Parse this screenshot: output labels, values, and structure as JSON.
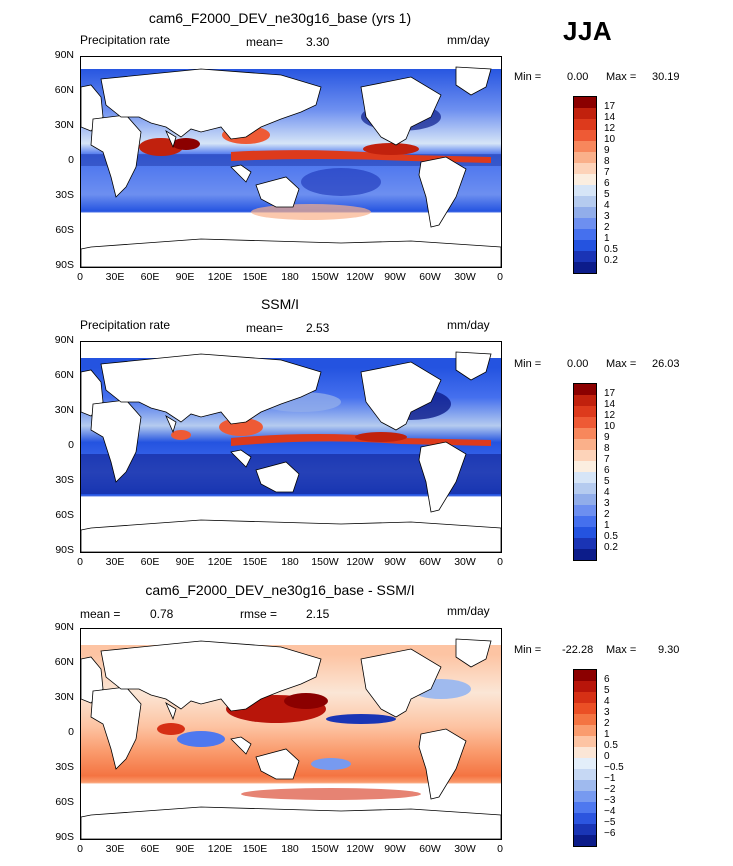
{
  "season": "JJA",
  "panels": [
    {
      "title": "cam6_F2000_DEV_ne30g16_base (yrs 1)",
      "left_label": "Precipitation rate",
      "center_label": "mean=",
      "center_value": "3.30",
      "units": "mm/day",
      "min_label": "Min =",
      "min_value": "0.00",
      "max_label": "Max =",
      "max_value": "30.19",
      "colorbar_labels": [
        "17",
        "14",
        "12",
        "10",
        "9",
        "8",
        "7",
        "6",
        "5",
        "4",
        "3",
        "2",
        "1",
        "0.5",
        "0.2"
      ],
      "colorbar_colors": [
        "#8b0000",
        "#c1210d",
        "#dd3a1c",
        "#ee5a35",
        "#f7875c",
        "#fab08a",
        "#fdd3b9",
        "#fbeee0",
        "#d6e5f7",
        "#b5cbef",
        "#91adea",
        "#6d8ff0",
        "#4570ee",
        "#2453e0",
        "#1a34b5",
        "#0c1c8a"
      ]
    },
    {
      "title": "SSM/I",
      "left_label": "Precipitation rate",
      "center_label": "mean=",
      "center_value": "2.53",
      "units": "mm/day",
      "min_label": "Min =",
      "min_value": "0.00",
      "max_label": "Max =",
      "max_value": "26.03",
      "colorbar_labels": [
        "17",
        "14",
        "12",
        "10",
        "9",
        "8",
        "7",
        "6",
        "5",
        "4",
        "3",
        "2",
        "1",
        "0.5",
        "0.2"
      ],
      "colorbar_colors": [
        "#8b0000",
        "#c1210d",
        "#dd3a1c",
        "#ee5a35",
        "#f7875c",
        "#fab08a",
        "#fdd3b9",
        "#fbeee0",
        "#d6e5f7",
        "#b5cbef",
        "#91adea",
        "#6d8ff0",
        "#4570ee",
        "#2453e0",
        "#1a34b5",
        "#0c1c8a"
      ]
    },
    {
      "title": "cam6_F2000_DEV_ne30g16_base - SSM/I",
      "left_label": "mean =",
      "left_value": "0.78",
      "center_label": "rmse =",
      "center_value": "2.15",
      "units": "mm/day",
      "min_label": "Min =",
      "min_value": "-22.28",
      "max_label": "Max =",
      "max_value": "9.30",
      "colorbar_labels": [
        "6",
        "5",
        "4",
        "3",
        "2",
        "1",
        "0.5",
        "0",
        "−0.5",
        "−1",
        "−2",
        "−3",
        "−4",
        "−5",
        "−6"
      ],
      "colorbar_colors": [
        "#8b0000",
        "#b8150a",
        "#d63015",
        "#eb4f25",
        "#f47442",
        "#fa9c6e",
        "#fdc4a3",
        "#fbe6d6",
        "#e3eefa",
        "#c6d8f4",
        "#9fbaee",
        "#779af0",
        "#4e78ef",
        "#2c55df",
        "#1a35b5",
        "#0c1c8a"
      ]
    }
  ],
  "lat_ticks": [
    "90N",
    "60N",
    "30N",
    "0",
    "30S",
    "60S",
    "90S"
  ],
  "lon_ticks": [
    "0",
    "30E",
    "60E",
    "90E",
    "120E",
    "150E",
    "180",
    "150W",
    "120W",
    "90W",
    "60W",
    "30W",
    "0"
  ]
}
